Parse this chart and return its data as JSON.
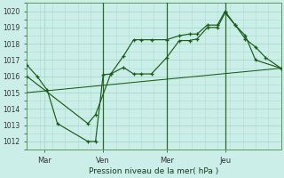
{
  "xlabel": "Pression niveau de la mer( hPa )",
  "bg_color": "#cceee8",
  "grid_color": "#aaddcc",
  "line_color": "#1a5c1a",
  "ylim": [
    1011.5,
    1020.5
  ],
  "xlim": [
    0,
    100
  ],
  "xtick_labels": [
    "Mar",
    "Ven",
    "Mer",
    "Jeu"
  ],
  "xtick_positions": [
    7,
    30,
    55,
    78
  ],
  "ytick_values": [
    1012,
    1013,
    1014,
    1015,
    1016,
    1017,
    1018,
    1019,
    1020
  ],
  "vlines_x": [
    30,
    55,
    78
  ],
  "series1_x": [
    0,
    4,
    8,
    12,
    24,
    27,
    30,
    33,
    38,
    42,
    45,
    49,
    55,
    60,
    64,
    67,
    71,
    75,
    78,
    82,
    86,
    90,
    94,
    100
  ],
  "series1_y": [
    1016.7,
    1016.0,
    1015.15,
    1013.1,
    1012.0,
    1012.0,
    1016.1,
    1016.15,
    1016.55,
    1016.15,
    1016.15,
    1016.15,
    1017.15,
    1018.2,
    1018.2,
    1018.3,
    1019.0,
    1019.0,
    1019.9,
    1019.15,
    1018.3,
    1017.8,
    1017.15,
    1016.5
  ],
  "series2_x": [
    0,
    24,
    27,
    33,
    38,
    42,
    45,
    49,
    55,
    60,
    64,
    67,
    71,
    75,
    78,
    82,
    86,
    90,
    100
  ],
  "series2_y": [
    1016.0,
    1013.1,
    1013.65,
    1016.15,
    1017.25,
    1018.25,
    1018.25,
    1018.25,
    1018.25,
    1018.5,
    1018.6,
    1018.6,
    1019.15,
    1019.15,
    1020.0,
    1019.15,
    1018.5,
    1017.0,
    1016.5
  ],
  "series3_x": [
    0,
    100
  ],
  "series3_y": [
    1015.0,
    1016.5
  ]
}
